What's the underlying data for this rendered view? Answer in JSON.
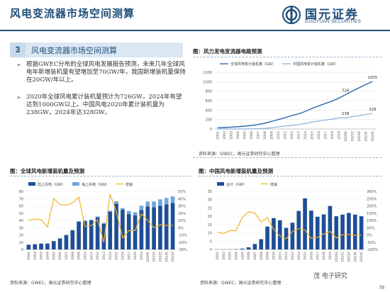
{
  "header": {
    "title": "风电变流器市场空间测算",
    "logo_cn": "国元证券",
    "logo_en": "GUOYUAN SECURITIES"
  },
  "section": {
    "number": "3",
    "label": "风电变流器市场空间测算"
  },
  "bullets": [
    {
      "icon": "arrow-bullet-icon",
      "text": "根据GWEC分布的全球风电发展报告预测，未来几年全球风电年新增装机量有望增加至70GW/年，我国新增装机量保持在20GW/年以上。"
    },
    {
      "icon": "arrow-bullet-icon",
      "text": "2020年全球风电累计装机量预计为726GW，2024年有望达到1000GW以上。中国风电2020年累计装机量为238GW，2024年达328GW。"
    }
  ],
  "figures": {
    "top_title": "图：风力发电变流器电路预测",
    "top_source": "资料来源：GWEC，国元证券研究中心整理",
    "left_title": "图：全球风电新增装机量及预测",
    "left_source": "资料来源：GWEC，国元证券研究中心整理",
    "right_title": "图：中国风电新增装机量及预测",
    "right_source": "资料来源：GWEC，国元证券研究中心整理"
  },
  "page_number": "78",
  "watermark": "茂 电子研究",
  "chart_data": [
    {
      "type": "line",
      "categories": [
        "2001",
        "2002",
        "2003",
        "2004",
        "2005",
        "2006",
        "2007",
        "2008",
        "2009",
        "2010",
        "2011",
        "2012",
        "2013",
        "2014",
        "2015",
        "2016",
        "2017",
        "2018",
        "2019",
        "2020E",
        "2021E",
        "2022E",
        "2023E",
        "2024E"
      ],
      "series": [
        {
          "name": "全球风电累计装机量（GW）",
          "color": "#1f5fa8",
          "values": [
            24,
            31,
            39,
            48,
            59,
            74,
            94,
            121,
            159,
            198,
            238,
            283,
            319,
            370,
            433,
            488,
            540,
            591,
            651,
            726,
            800,
            870,
            940,
            1005
          ]
        },
        {
          "name": "中国风电累计装机量（GW）",
          "color": "#8fb4da",
          "values": [
            0.4,
            0.5,
            0.6,
            0.8,
            1.3,
            2.6,
            5.9,
            12,
            26,
            45,
            62,
            76,
            92,
            115,
            145,
            169,
            188,
            209,
            236,
            238,
            260,
            282,
            305,
            328
          ]
        }
      ],
      "data_labels": [
        {
          "series": 0,
          "index": 19,
          "text": "726"
        },
        {
          "series": 0,
          "index": 23,
          "text": "1005"
        },
        {
          "series": 1,
          "index": 19,
          "text": "238"
        },
        {
          "series": 1,
          "index": 23,
          "text": "328"
        }
      ],
      "ylim": [
        0,
        1200
      ],
      "yticks": [
        0,
        200,
        400,
        600,
        800,
        1000,
        1200
      ],
      "grid": true,
      "legend_position": "top-left"
    },
    {
      "type": "bar",
      "categories": [
        "2001",
        "2002",
        "2003",
        "2004",
        "2005",
        "2006",
        "2007",
        "2008",
        "2009",
        "2010",
        "2011",
        "2012",
        "2013",
        "2014",
        "2015",
        "2016",
        "2017",
        "2018",
        "2019",
        "2020E",
        "2021E",
        "2022E",
        "2023E",
        "2024E"
      ],
      "series": [
        {
          "name": "陆上风电（GW）",
          "color": "#1f4e96",
          "kind": "bar",
          "values": [
            6.5,
            7.3,
            8.1,
            8.2,
            11.5,
            15.2,
            19.9,
            26.6,
            38.3,
            38.9,
            40.1,
            44.2,
            35.2,
            51.7,
            63.0,
            54.9,
            48.7,
            46.8,
            54.2,
            59,
            58,
            60,
            62,
            64
          ]
        },
        {
          "name": "海上风电（GW）",
          "color": "#6fa8dc",
          "kind": "bar",
          "values": [
            0,
            0,
            0,
            0,
            0,
            0,
            0,
            0,
            0.6,
            1.2,
            0.9,
            1.3,
            1.6,
            1.7,
            3.4,
            2.2,
            4.3,
            4.5,
            6.1,
            7,
            8,
            9,
            9,
            9
          ]
        },
        {
          "name": "增速",
          "color": "#f0b323",
          "kind": "line",
          "axis": "right",
          "values": [
            10,
            12,
            11,
            1,
            40,
            32,
            31,
            34,
            42,
            2,
            3,
            11,
            -20,
            46,
            22,
            -14,
            -4,
            -4,
            19,
            10,
            0,
            4,
            3,
            3
          ]
        }
      ],
      "ylim": [
        0,
        80
      ],
      "yticks": [
        0,
        10,
        20,
        30,
        40,
        50,
        60,
        70,
        80
      ],
      "y2lim": [
        -30,
        50
      ],
      "y2ticks": [
        "-30%",
        "-20%",
        "-10%",
        "0%",
        "10%",
        "20%",
        "30%",
        "40%",
        "50%"
      ],
      "legend_position": "top"
    },
    {
      "type": "bar",
      "categories": [
        "2001",
        "2002",
        "2003",
        "2004",
        "2005",
        "2006",
        "2007",
        "2008",
        "2009",
        "2010",
        "2011",
        "2012",
        "2013",
        "2014",
        "2015",
        "2016",
        "2017",
        "2018",
        "2019",
        "2020E",
        "2021E",
        "2022E",
        "2023E",
        "2024E"
      ],
      "series": [
        {
          "name": "合计（GW）",
          "color": "#1f4e96",
          "kind": "bar",
          "values": [
            0.1,
            0.1,
            0.1,
            0.2,
            0.5,
            1.3,
            3.3,
            6.2,
            13.8,
            18.9,
            17.6,
            13.0,
            16.1,
            23.2,
            30.8,
            23.4,
            19.7,
            21.1,
            26.2,
            20,
            21,
            22,
            21,
            20
          ]
        },
        {
          "name": "增速",
          "color": "#f0b323",
          "kind": "line",
          "axis": "right",
          "values": [
            20,
            10,
            30,
            30,
            120,
            160,
            150,
            90,
            120,
            37,
            -7,
            -26,
            24,
            44,
            33,
            -24,
            -16,
            7,
            24,
            -20,
            2,
            4,
            -3,
            -2
          ]
        }
      ],
      "ylim": [
        0,
        35
      ],
      "yticks": [
        0,
        5,
        10,
        15,
        20,
        25,
        30,
        35
      ],
      "y2lim": [
        -100,
        300
      ],
      "y2ticks": [
        "-100%",
        "-50%",
        "0%",
        "50%",
        "100%",
        "150%",
        "200%",
        "250%",
        "300%"
      ],
      "legend_position": "top"
    }
  ]
}
